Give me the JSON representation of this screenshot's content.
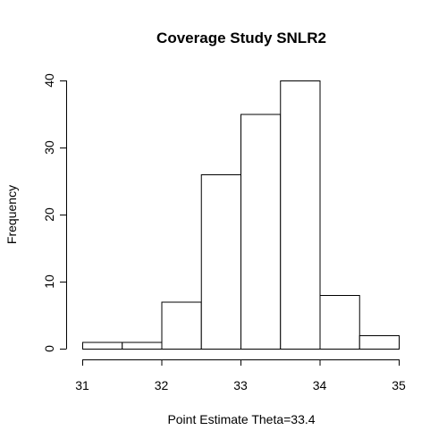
{
  "chart_data": {
    "type": "bar",
    "title": "Coverage Study SNLR2",
    "xlabel": "Point Estimate Theta=33.4",
    "ylabel": "Frequency",
    "bins": [
      {
        "start": 31.0,
        "end": 31.5,
        "count": 1
      },
      {
        "start": 31.5,
        "end": 32.0,
        "count": 1
      },
      {
        "start": 32.0,
        "end": 32.5,
        "count": 7
      },
      {
        "start": 32.5,
        "end": 33.0,
        "count": 26
      },
      {
        "start": 33.0,
        "end": 33.5,
        "count": 35
      },
      {
        "start": 33.5,
        "end": 34.0,
        "count": 40
      },
      {
        "start": 34.0,
        "end": 34.5,
        "count": 8
      },
      {
        "start": 34.5,
        "end": 35.0,
        "count": 2
      }
    ],
    "xlim": [
      31,
      35
    ],
    "ylim": [
      0,
      40
    ],
    "xticks": [
      31,
      32,
      33,
      34,
      35
    ],
    "yticks": [
      0,
      10,
      20,
      30,
      40
    ],
    "xtick_labels": [
      "31",
      "32",
      "33",
      "34",
      "35"
    ],
    "ytick_labels": [
      "0",
      "10",
      "20",
      "30",
      "40"
    ],
    "grid": false,
    "legend": "none"
  }
}
